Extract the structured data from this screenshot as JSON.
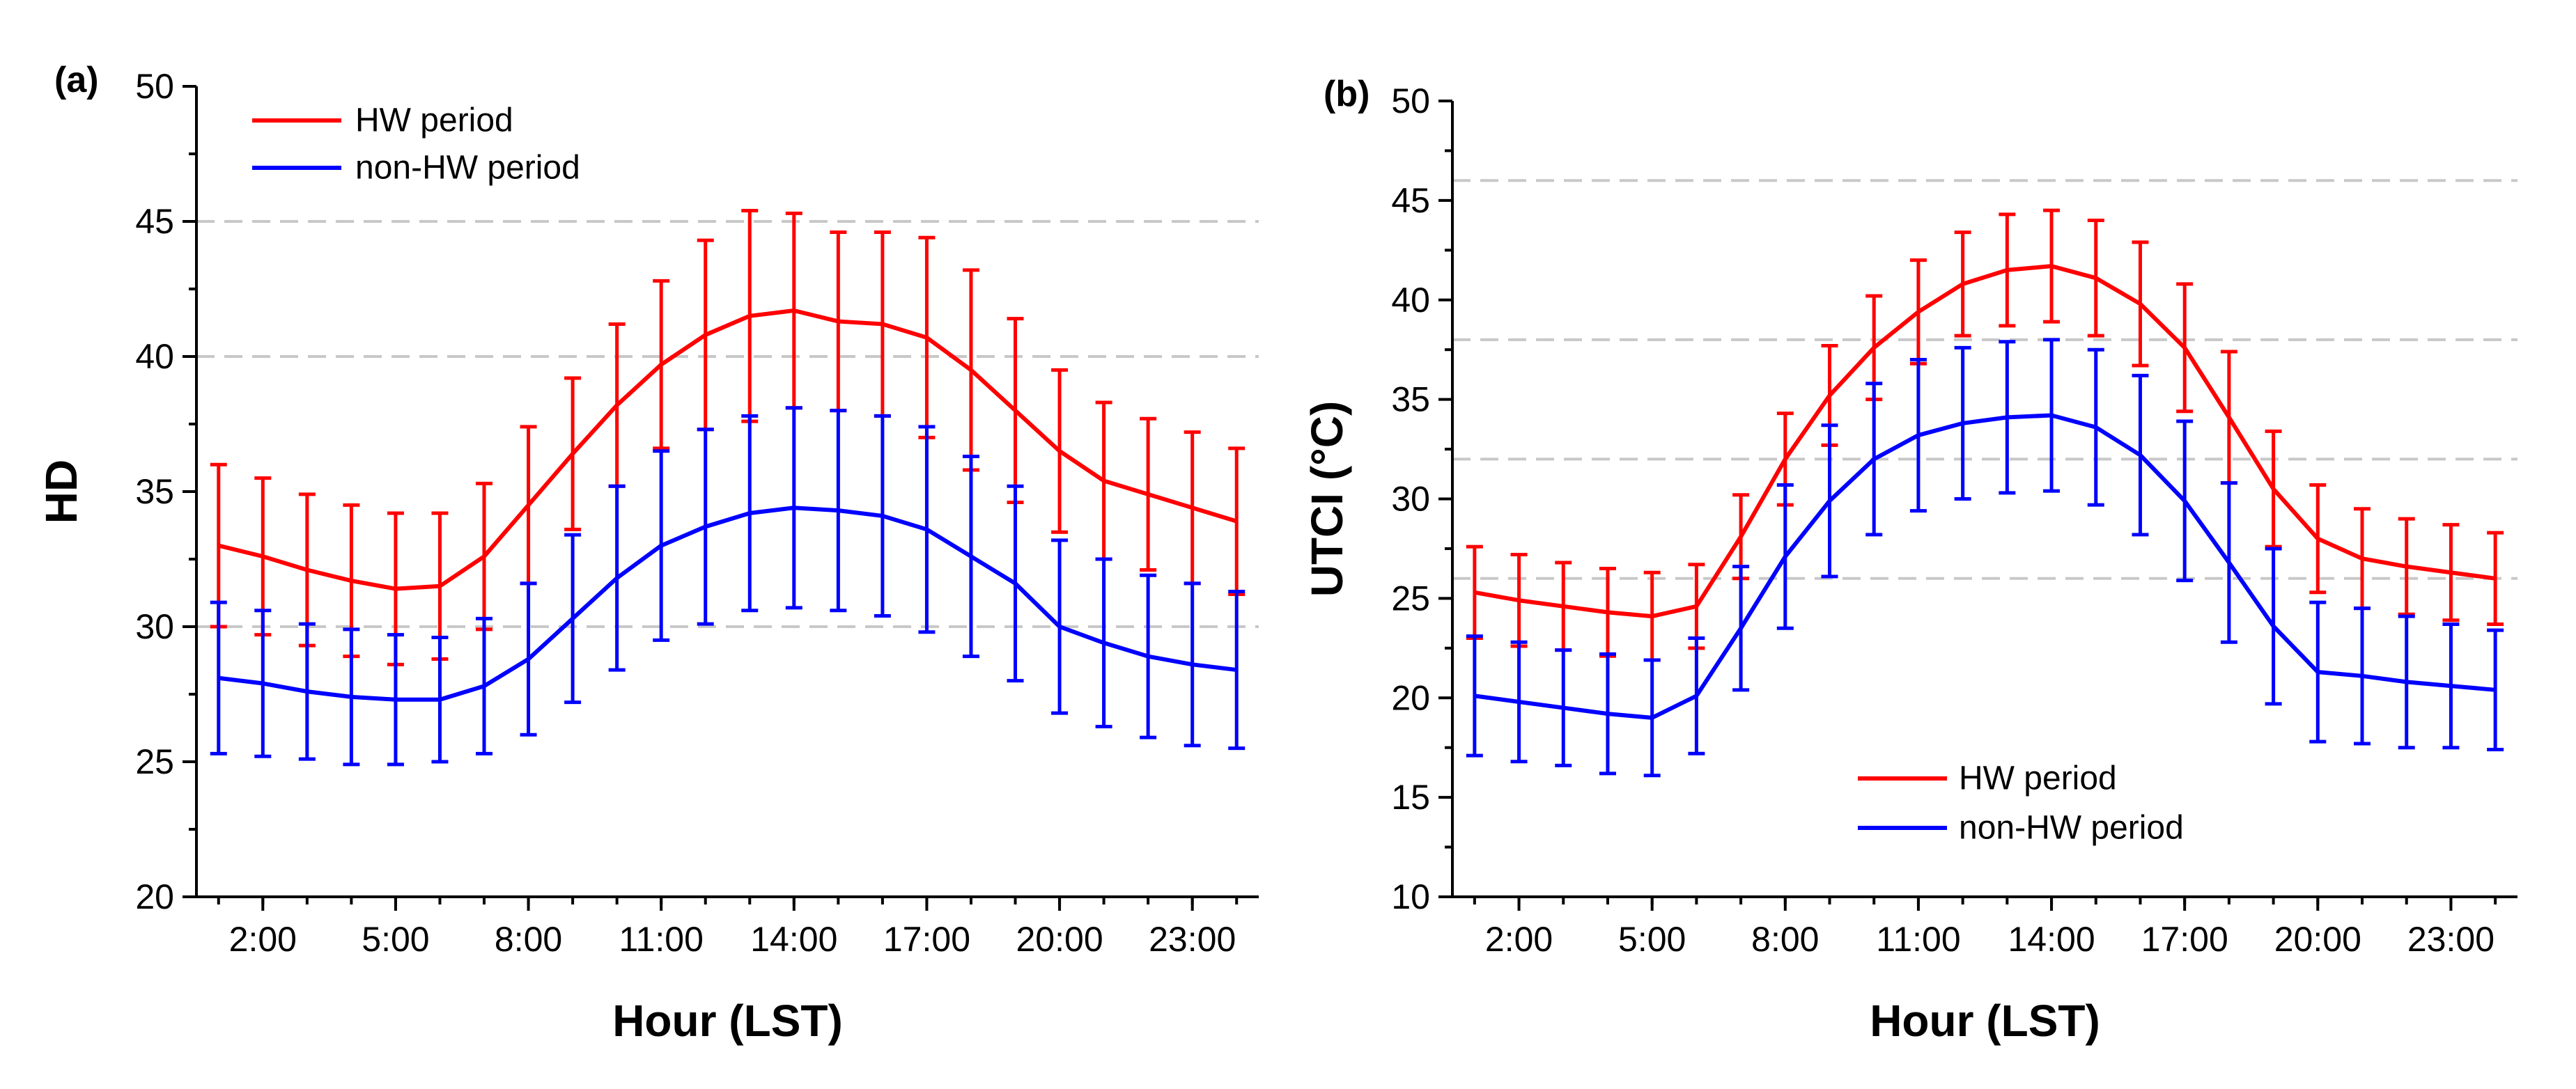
{
  "chart_data": [
    {
      "panel_label": "(a)",
      "type": "line",
      "ylabel": "HD",
      "xlabel": "Hour (LST)",
      "xlim": [
        0.5,
        24.5
      ],
      "ylim": [
        20,
        50
      ],
      "yticks": [
        20,
        25,
        30,
        35,
        40,
        45,
        50
      ],
      "xticks": [
        {
          "x": 2,
          "label": "2:00"
        },
        {
          "x": 5,
          "label": "5:00"
        },
        {
          "x": 8,
          "label": "8:00"
        },
        {
          "x": 11,
          "label": "11:00"
        },
        {
          "x": 14,
          "label": "14:00"
        },
        {
          "x": 17,
          "label": "17:00"
        },
        {
          "x": 20,
          "label": "20:00"
        },
        {
          "x": 23,
          "label": "23:00"
        }
      ],
      "reference_lines": [
        30,
        40,
        45
      ],
      "legend_position": "top-left",
      "x": [
        1,
        2,
        3,
        4,
        5,
        6,
        7,
        8,
        9,
        10,
        11,
        12,
        13,
        14,
        15,
        16,
        17,
        18,
        19,
        20,
        21,
        22,
        23,
        24
      ],
      "series": [
        {
          "name": "HW period",
          "color": "#ff0000",
          "values": [
            33.0,
            32.6,
            32.1,
            31.7,
            31.4,
            31.5,
            32.6,
            34.5,
            36.4,
            38.2,
            39.7,
            40.8,
            41.5,
            41.7,
            41.3,
            41.2,
            40.7,
            39.5,
            38.0,
            36.5,
            35.4,
            34.9,
            34.4,
            33.9
          ],
          "error": [
            3.0,
            2.9,
            2.8,
            2.8,
            2.8,
            2.7,
            2.7,
            2.9,
            2.8,
            3.0,
            3.1,
            3.5,
            3.9,
            3.6,
            3.3,
            3.4,
            3.7,
            3.7,
            3.4,
            3.0,
            2.9,
            2.8,
            2.8,
            2.7
          ]
        },
        {
          "name": "non-HW period",
          "color": "#0000ff",
          "values": [
            28.1,
            27.9,
            27.6,
            27.4,
            27.3,
            27.3,
            27.8,
            28.8,
            30.3,
            31.8,
            33.0,
            33.7,
            34.2,
            34.4,
            34.3,
            34.1,
            33.6,
            32.6,
            31.6,
            30.0,
            29.4,
            28.9,
            28.6,
            28.4
          ],
          "error": [
            2.8,
            2.7,
            2.5,
            2.5,
            2.4,
            2.3,
            2.5,
            2.8,
            3.1,
            3.4,
            3.5,
            3.6,
            3.6,
            3.7,
            3.7,
            3.7,
            3.8,
            3.7,
            3.6,
            3.2,
            3.1,
            3.0,
            3.0,
            2.9
          ]
        }
      ]
    },
    {
      "panel_label": "(b)",
      "type": "line",
      "ylabel": "UTCI (°C)",
      "xlabel": "Hour (LST)",
      "xlim": [
        0.5,
        24.5
      ],
      "ylim": [
        10,
        50
      ],
      "yticks": [
        10,
        15,
        20,
        25,
        30,
        35,
        40,
        45,
        50
      ],
      "xticks": [
        {
          "x": 2,
          "label": "2:00"
        },
        {
          "x": 5,
          "label": "5:00"
        },
        {
          "x": 8,
          "label": "8:00"
        },
        {
          "x": 11,
          "label": "11:00"
        },
        {
          "x": 14,
          "label": "14:00"
        },
        {
          "x": 17,
          "label": "17:00"
        },
        {
          "x": 20,
          "label": "20:00"
        },
        {
          "x": 23,
          "label": "23:00"
        }
      ],
      "reference_lines": [
        26,
        32,
        38,
        46
      ],
      "legend_position": "bottom-center",
      "x": [
        1,
        2,
        3,
        4,
        5,
        6,
        7,
        8,
        9,
        10,
        11,
        12,
        13,
        14,
        15,
        16,
        17,
        18,
        19,
        20,
        21,
        22,
        23,
        24
      ],
      "series": [
        {
          "name": "HW period",
          "color": "#ff0000",
          "values": [
            25.3,
            24.9,
            24.6,
            24.3,
            24.1,
            24.6,
            28.1,
            32.0,
            35.2,
            37.6,
            39.4,
            40.8,
            41.5,
            41.7,
            41.1,
            39.8,
            37.6,
            34.1,
            30.5,
            28.0,
            27.0,
            26.6,
            26.3,
            26.0
          ],
          "error": [
            2.3,
            2.3,
            2.2,
            2.2,
            2.2,
            2.1,
            2.1,
            2.3,
            2.5,
            2.6,
            2.6,
            2.6,
            2.8,
            2.8,
            2.9,
            3.1,
            3.2,
            3.3,
            2.9,
            2.7,
            2.5,
            2.4,
            2.4,
            2.3
          ]
        },
        {
          "name": "non-HW period",
          "color": "#0000ff",
          "values": [
            20.1,
            19.8,
            19.5,
            19.2,
            19.0,
            20.1,
            23.5,
            27.1,
            29.9,
            32.0,
            33.2,
            33.8,
            34.1,
            34.2,
            33.6,
            32.2,
            29.9,
            26.8,
            23.6,
            21.3,
            21.1,
            20.8,
            20.6,
            20.4
          ],
          "error": [
            3.0,
            3.0,
            2.9,
            3.0,
            2.9,
            2.9,
            3.1,
            3.6,
            3.8,
            3.8,
            3.8,
            3.8,
            3.8,
            3.8,
            3.9,
            4.0,
            4.0,
            4.0,
            3.9,
            3.5,
            3.4,
            3.3,
            3.1,
            3.0
          ]
        }
      ]
    }
  ]
}
